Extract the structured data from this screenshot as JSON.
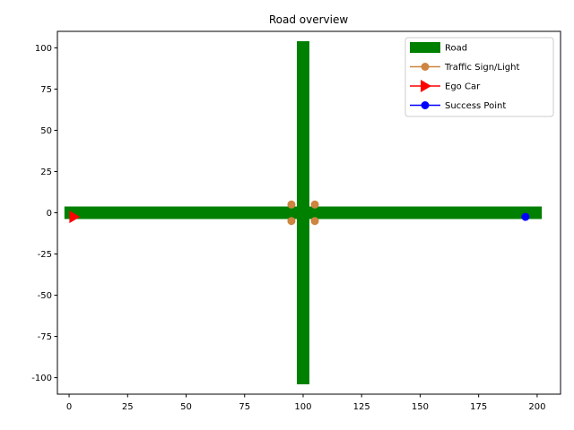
{
  "chart_data": {
    "type": "scatter",
    "title": "Road overview",
    "xlabel": "",
    "ylabel": "",
    "xlim": [
      -5,
      210
    ],
    "ylim": [
      -110,
      110
    ],
    "xticks": [
      0,
      25,
      50,
      75,
      100,
      125,
      150,
      175,
      200
    ],
    "yticks": [
      -100,
      -75,
      -50,
      -25,
      0,
      25,
      50,
      75,
      100
    ],
    "grid": false,
    "legend_position": "top-right",
    "series": [
      {
        "name": "Road",
        "kind": "thick-line",
        "color": "#008000",
        "segments": [
          [
            [
              -2,
              0
            ],
            [
              202,
              0
            ]
          ],
          [
            [
              100,
              104
            ],
            [
              100,
              -104
            ]
          ]
        ]
      },
      {
        "name": "Traffic Sign/Light",
        "kind": "marker",
        "marker": "circle",
        "color": "#cd853f",
        "points": [
          [
            95,
            5
          ],
          [
            105,
            5
          ],
          [
            95,
            -5
          ],
          [
            105,
            -5
          ]
        ]
      },
      {
        "name": "Ego Car",
        "kind": "marker",
        "marker": "triangle-right",
        "color": "#ff0000",
        "points": [
          [
            2,
            -2.5
          ]
        ]
      },
      {
        "name": "Success Point",
        "kind": "marker",
        "marker": "circle",
        "color": "#0000ff",
        "points": [
          [
            195,
            -2.5
          ]
        ]
      }
    ]
  }
}
